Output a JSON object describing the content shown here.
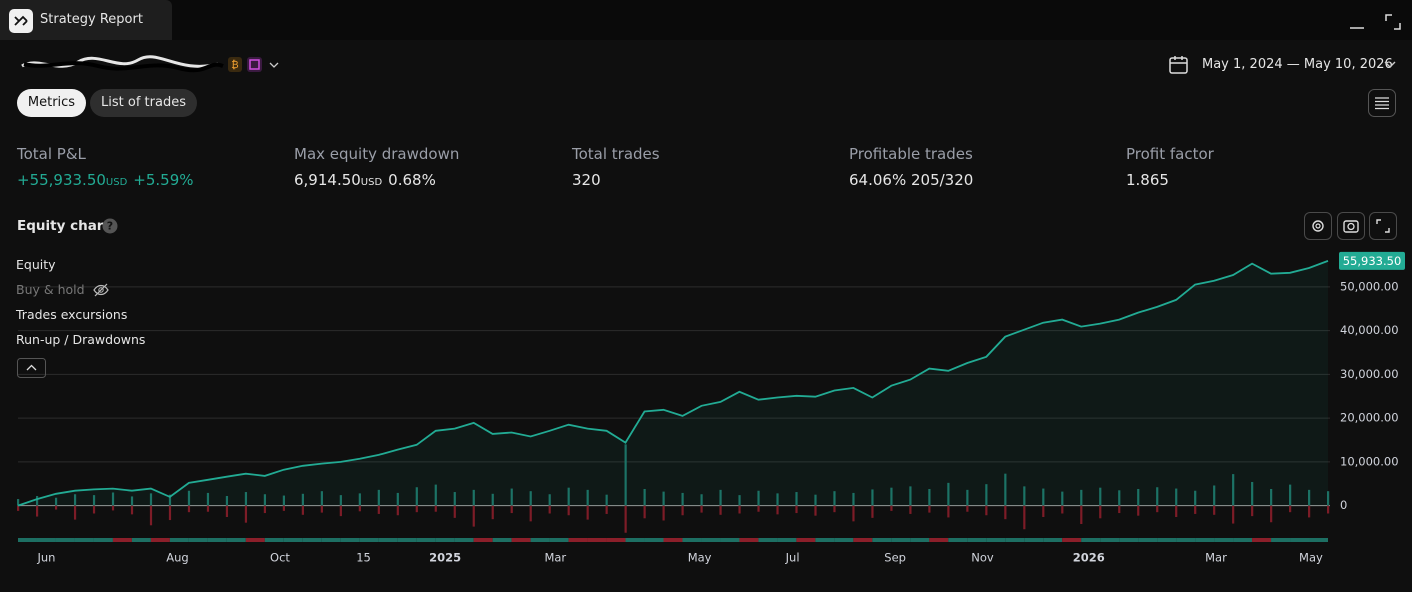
{
  "header": {
    "title": "Strategy Report"
  },
  "toolbar": {
    "date_range": "May 1, 2024 — May 10, 2026",
    "tabs": [
      "Metrics",
      "List of trades"
    ]
  },
  "metrics": [
    {
      "label": "Total P&L",
      "value": "+55,933.50",
      "unit": "USD",
      "extra": "+5.59%"
    },
    {
      "label": "Max equity drawdown",
      "value": "6,914.50",
      "unit": "USD",
      "extra": "0.68%"
    },
    {
      "label": "Total trades",
      "value": "320"
    },
    {
      "label": "Profitable trades",
      "value": "64.06%",
      "extra": "205/320"
    },
    {
      "label": "Profit factor",
      "value": "1.865"
    }
  ],
  "chart_data": {
    "type": "line",
    "title": "Equity chart",
    "legend_extra": [
      "Buy & hold",
      "Trades excursions",
      "Run-up / Drawdowns"
    ],
    "series": [
      {
        "name": "Equity",
        "color": "#22ab94",
        "end_label": "55,933.50",
        "values": [
          0,
          1500,
          2700,
          3400,
          3700,
          3900,
          3400,
          3900,
          2000,
          5200,
          5900,
          6600,
          7300,
          6800,
          8200,
          9100,
          9600,
          10000,
          10700,
          11600,
          12800,
          13900,
          17100,
          17600,
          18900,
          16400,
          16700,
          15800,
          17100,
          18500,
          17600,
          17100,
          14400,
          21500,
          21900,
          20500,
          22800,
          23700,
          26000,
          24200,
          24700,
          25100,
          24900,
          26300,
          26900,
          24700,
          27400,
          28800,
          31300,
          30800,
          32600,
          34000,
          38600,
          40200,
          41800,
          42500,
          40900,
          41600,
          42500,
          44100,
          45400,
          47000,
          50500,
          51400,
          52700,
          55300,
          53000,
          53200,
          54300,
          55933.5
        ]
      }
    ],
    "runups": {
      "color": "#1d6f63",
      "values": [
        1500,
        2200,
        1800,
        2600,
        2400,
        3000,
        2100,
        2800,
        2500,
        3400,
        2900,
        2200,
        3100,
        2600,
        2300,
        2700,
        3300,
        2400,
        2800,
        3600,
        2900,
        4200,
        4800,
        3100,
        3600,
        2700,
        3900,
        3300,
        2600,
        4100,
        3600,
        2500,
        14000,
        3800,
        3200,
        2900,
        2600,
        3600,
        2400,
        3400,
        2800,
        3100,
        2500,
        3300,
        2900,
        3700,
        4100,
        4400,
        3800,
        5200,
        3600,
        4900,
        7300,
        4400,
        3900,
        3200,
        3600,
        4100,
        3500,
        3800,
        4200,
        3900,
        3400,
        4600,
        7200,
        5400,
        3800,
        4800,
        3600,
        3300
      ]
    },
    "drawdowns": {
      "color": "#7d1c27",
      "values": [
        -1200,
        -2500,
        -900,
        -3200,
        -1800,
        -1100,
        -2000,
        -4500,
        -3300,
        -1500,
        -1400,
        -2600,
        -3900,
        -1700,
        -1200,
        -2100,
        -1600,
        -2400,
        -1300,
        -1900,
        -2200,
        -1500,
        -1400,
        -2800,
        -4800,
        -3100,
        -1700,
        -3600,
        -1800,
        -2200,
        -3200,
        -1900,
        -6200,
        -2900,
        -3400,
        -2200,
        -1600,
        -2100,
        -1800,
        -1400,
        -2000,
        -1700,
        -2300,
        -1500,
        -3600,
        -2800,
        -1200,
        -1900,
        -1600,
        -2700,
        -1400,
        -2200,
        -3100,
        -5400,
        -2600,
        -1800,
        -4200,
        -2900,
        -1700,
        -2300,
        -1500,
        -2600,
        -1900,
        -2100,
        -4100,
        -2400,
        -3800,
        -1500,
        -2700,
        -1800
      ]
    },
    "xlim": [
      0,
      69
    ],
    "xticks": [
      {
        "value": 1.5,
        "label": "Jun"
      },
      {
        "value": 8.4,
        "label": "Aug"
      },
      {
        "value": 13.8,
        "label": "Oct"
      },
      {
        "value": 18.2,
        "label": "15"
      },
      {
        "value": 22.5,
        "label": "2025"
      },
      {
        "value": 28.3,
        "label": "Mar"
      },
      {
        "value": 35.9,
        "label": "May"
      },
      {
        "value": 40.8,
        "label": "Jul"
      },
      {
        "value": 46.2,
        "label": "Sep"
      },
      {
        "value": 50.8,
        "label": "Nov"
      },
      {
        "value": 56.4,
        "label": "2026"
      },
      {
        "value": 63.1,
        "label": "Mar"
      },
      {
        "value": 68.1,
        "label": "May"
      }
    ],
    "ylim": [
      -9000,
      57500
    ],
    "yticks": [
      0,
      {
        "value": 10000,
        "label": "10,000.00"
      },
      {
        "value": 20000,
        "label": "20,000.00"
      },
      {
        "value": 30000,
        "label": "30,000.00"
      },
      {
        "value": 40000,
        "label": "40,000.00"
      },
      {
        "value": 50000,
        "label": "50,000.00"
      }
    ],
    "grid": true
  }
}
